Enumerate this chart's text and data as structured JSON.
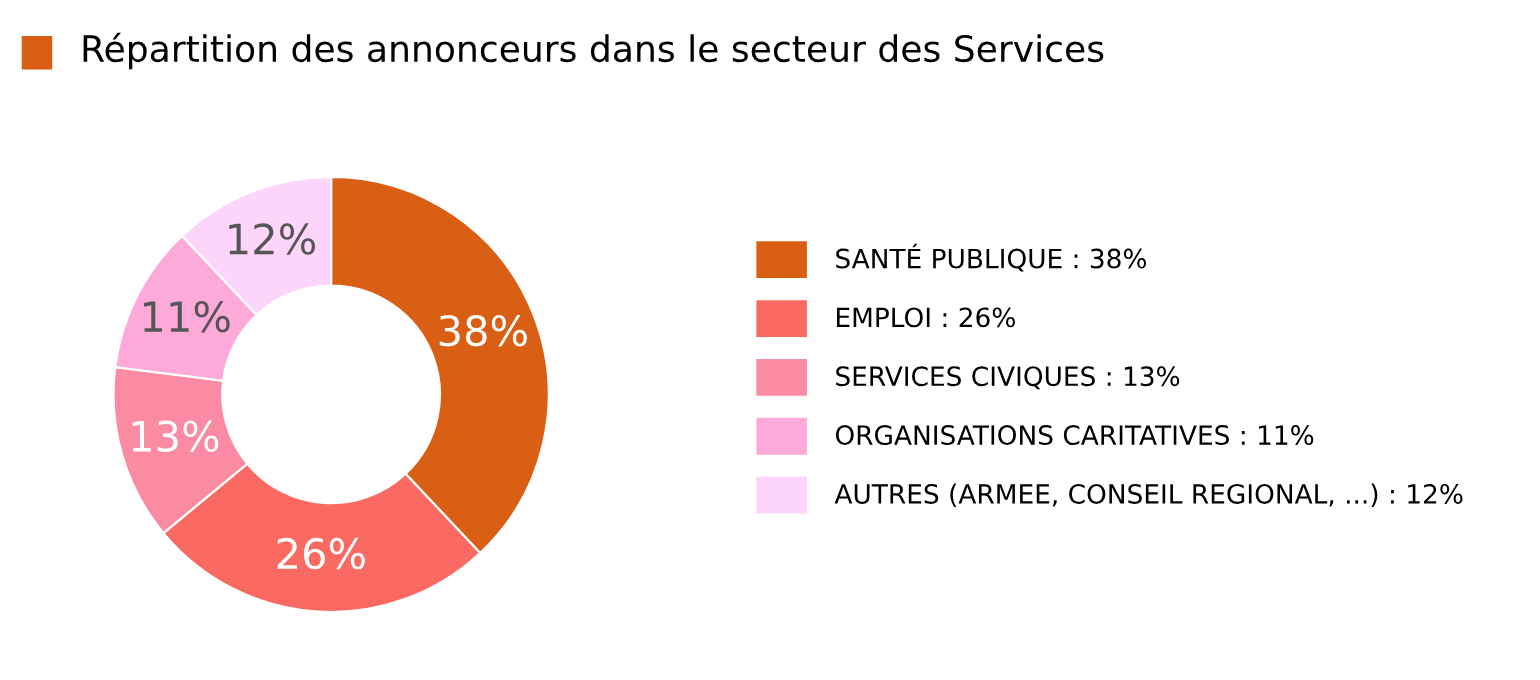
{
  "chart_data": {
    "type": "donut",
    "title": "Répartition des annonceurs dans le secteur des Services",
    "categories": [
      "SANTÉ PUBLIQUE : 38%",
      "EMPLOI : 26%",
      "SERVICES CIVIQUES : 13%",
      "ORGANISATIONS CARITATIVES : 11%",
      "AUTRES (ARMEE, CONSEIL REGIONAL, ...) : 12%"
    ],
    "values": [
      38,
      26,
      13,
      11,
      12
    ],
    "value_labels": [
      "38%",
      "26%",
      "13%",
      "11%",
      "12%"
    ],
    "colors": [
      "#d95f14",
      "#fa6a62",
      "#fb8aa3",
      "#fdaadb",
      "#fdd5fb"
    ],
    "legend": "right"
  }
}
